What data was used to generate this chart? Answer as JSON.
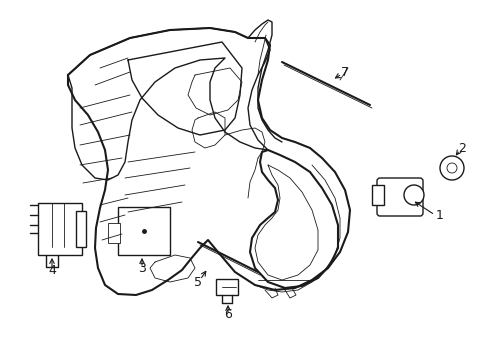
{
  "bg_color": "#ffffff",
  "line_color": "#1a1a1a",
  "lw_thick": 1.5,
  "lw_med": 1.0,
  "lw_thin": 0.6,
  "fig_width": 4.89,
  "fig_height": 3.6,
  "dpi": 100
}
